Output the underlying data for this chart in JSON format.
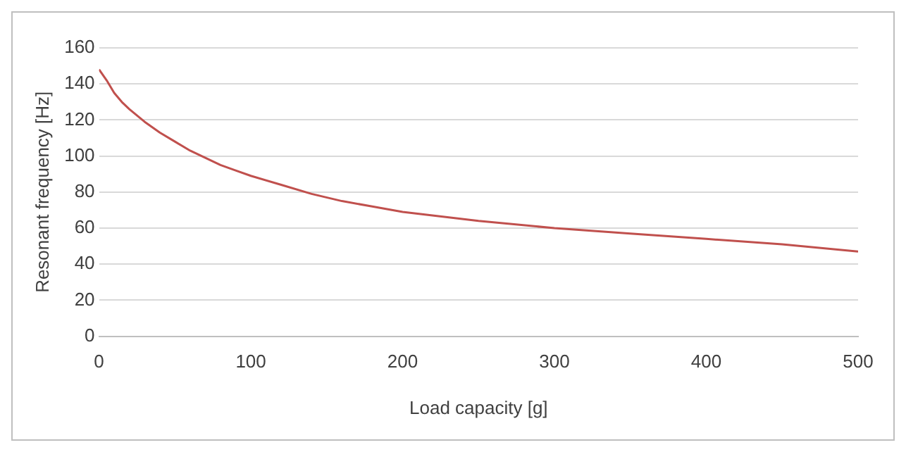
{
  "chart_data": {
    "type": "line",
    "xlabel": "Load capacity [g]",
    "ylabel": "Resonant frequency [Hz]",
    "x": [
      0,
      5,
      10,
      15,
      20,
      30,
      40,
      50,
      60,
      70,
      80,
      90,
      100,
      120,
      140,
      160,
      180,
      200,
      250,
      300,
      350,
      400,
      450,
      500
    ],
    "series": [
      {
        "color": "#c0504d",
        "values": [
          148,
          142,
          135,
          130,
          126,
          119,
          113,
          108,
          103,
          99,
          95,
          92,
          89,
          84,
          79,
          75,
          72,
          69,
          64,
          60,
          57,
          54,
          51,
          47
        ]
      }
    ],
    "xlim": [
      0,
      500
    ],
    "xticks": [
      0,
      100,
      200,
      300,
      400,
      500
    ],
    "ylim": [
      0,
      160
    ],
    "yticks": [
      0,
      20,
      40,
      60,
      80,
      100,
      120,
      140,
      160
    ],
    "grid": "y",
    "legend": false,
    "marker": "none",
    "line_style": "solid"
  }
}
